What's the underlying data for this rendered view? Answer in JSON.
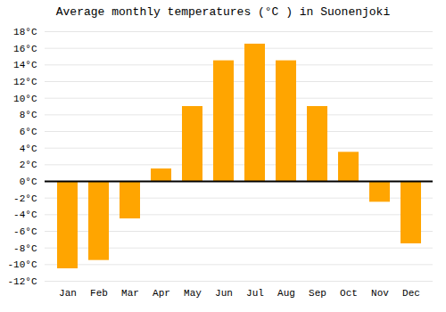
{
  "chart_data": {
    "type": "bar",
    "title": "Average monthly temperatures (°C ) in Suonenjoki",
    "categories": [
      "Jan",
      "Feb",
      "Mar",
      "Apr",
      "May",
      "Jun",
      "Jul",
      "Aug",
      "Sep",
      "Oct",
      "Nov",
      "Dec"
    ],
    "values": [
      -10.5,
      -9.5,
      -4.5,
      1.5,
      9.0,
      14.5,
      16.5,
      14.5,
      9.0,
      3.5,
      -2.5,
      -7.5
    ],
    "color": "#FFA500",
    "ylim": [
      -12,
      18
    ],
    "yticks": [
      {
        "value": -12,
        "label": "-12°C"
      },
      {
        "value": -10,
        "label": "-10°C"
      },
      {
        "value": -8,
        "label": "-8°C"
      },
      {
        "value": -6,
        "label": "-6°C"
      },
      {
        "value": -4,
        "label": "-4°C"
      },
      {
        "value": -2,
        "label": "-2°C"
      },
      {
        "value": 0,
        "label": "0°C"
      },
      {
        "value": 2,
        "label": "2°C"
      },
      {
        "value": 4,
        "label": "4°C"
      },
      {
        "value": 6,
        "label": "6°C"
      },
      {
        "value": 8,
        "label": "8°C"
      },
      {
        "value": 10,
        "label": "10°C"
      },
      {
        "value": 12,
        "label": "12°C"
      },
      {
        "value": 14,
        "label": "14°C"
      },
      {
        "value": 16,
        "label": "16°C"
      },
      {
        "value": 18,
        "label": "18°C"
      }
    ],
    "grid": true
  }
}
